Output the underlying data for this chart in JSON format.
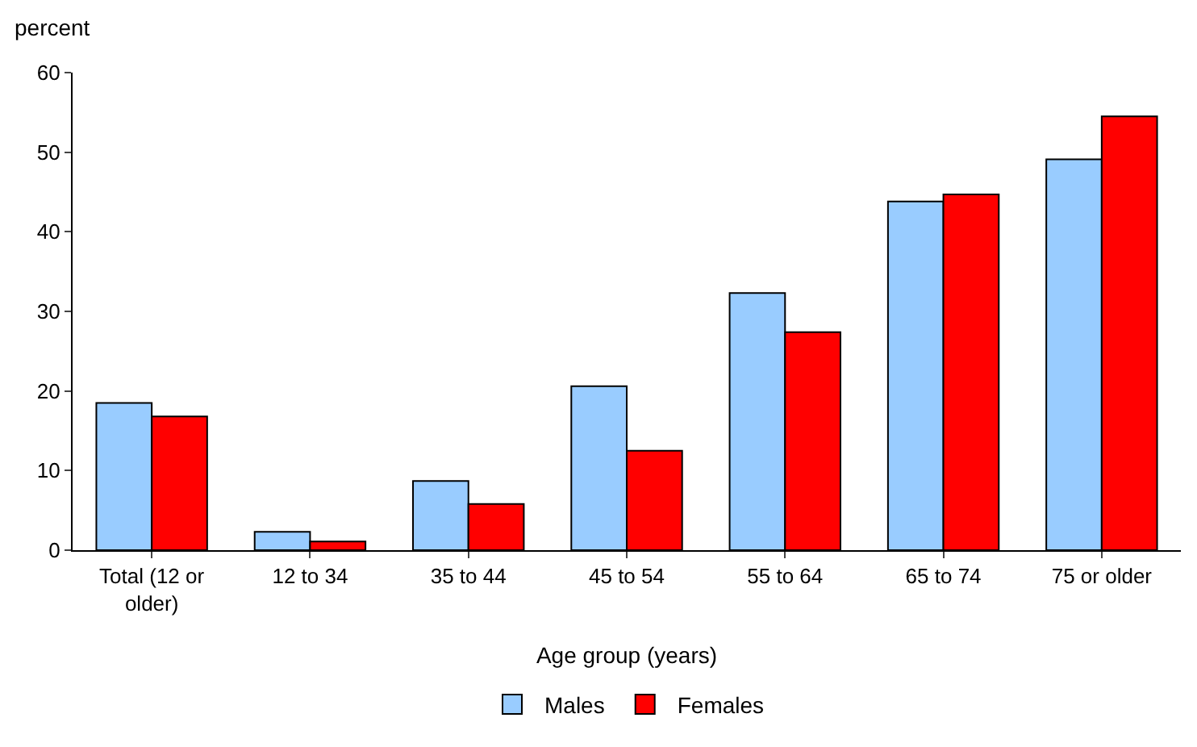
{
  "chart_data": {
    "type": "bar",
    "xlabel": "Age group (years)",
    "ylabel": "percent",
    "categories": [
      "Total (12 or older)",
      "12 to 34",
      "35 to 44",
      "45 to 54",
      "55 to 64",
      "65 to 74",
      "75 or older"
    ],
    "series": [
      {
        "name": "Males",
        "color": "#99ccff",
        "values": [
          18.5,
          2.3,
          8.7,
          20.6,
          32.3,
          43.8,
          49.1
        ]
      },
      {
        "name": "Females",
        "color": "#ff0000",
        "values": [
          16.8,
          1.1,
          5.8,
          12.5,
          27.4,
          44.7,
          54.5
        ]
      }
    ],
    "ylim": [
      0,
      60
    ],
    "yticks": [
      0,
      10,
      20,
      30,
      40,
      50,
      60
    ],
    "grid": false,
    "legend": "bottom"
  }
}
